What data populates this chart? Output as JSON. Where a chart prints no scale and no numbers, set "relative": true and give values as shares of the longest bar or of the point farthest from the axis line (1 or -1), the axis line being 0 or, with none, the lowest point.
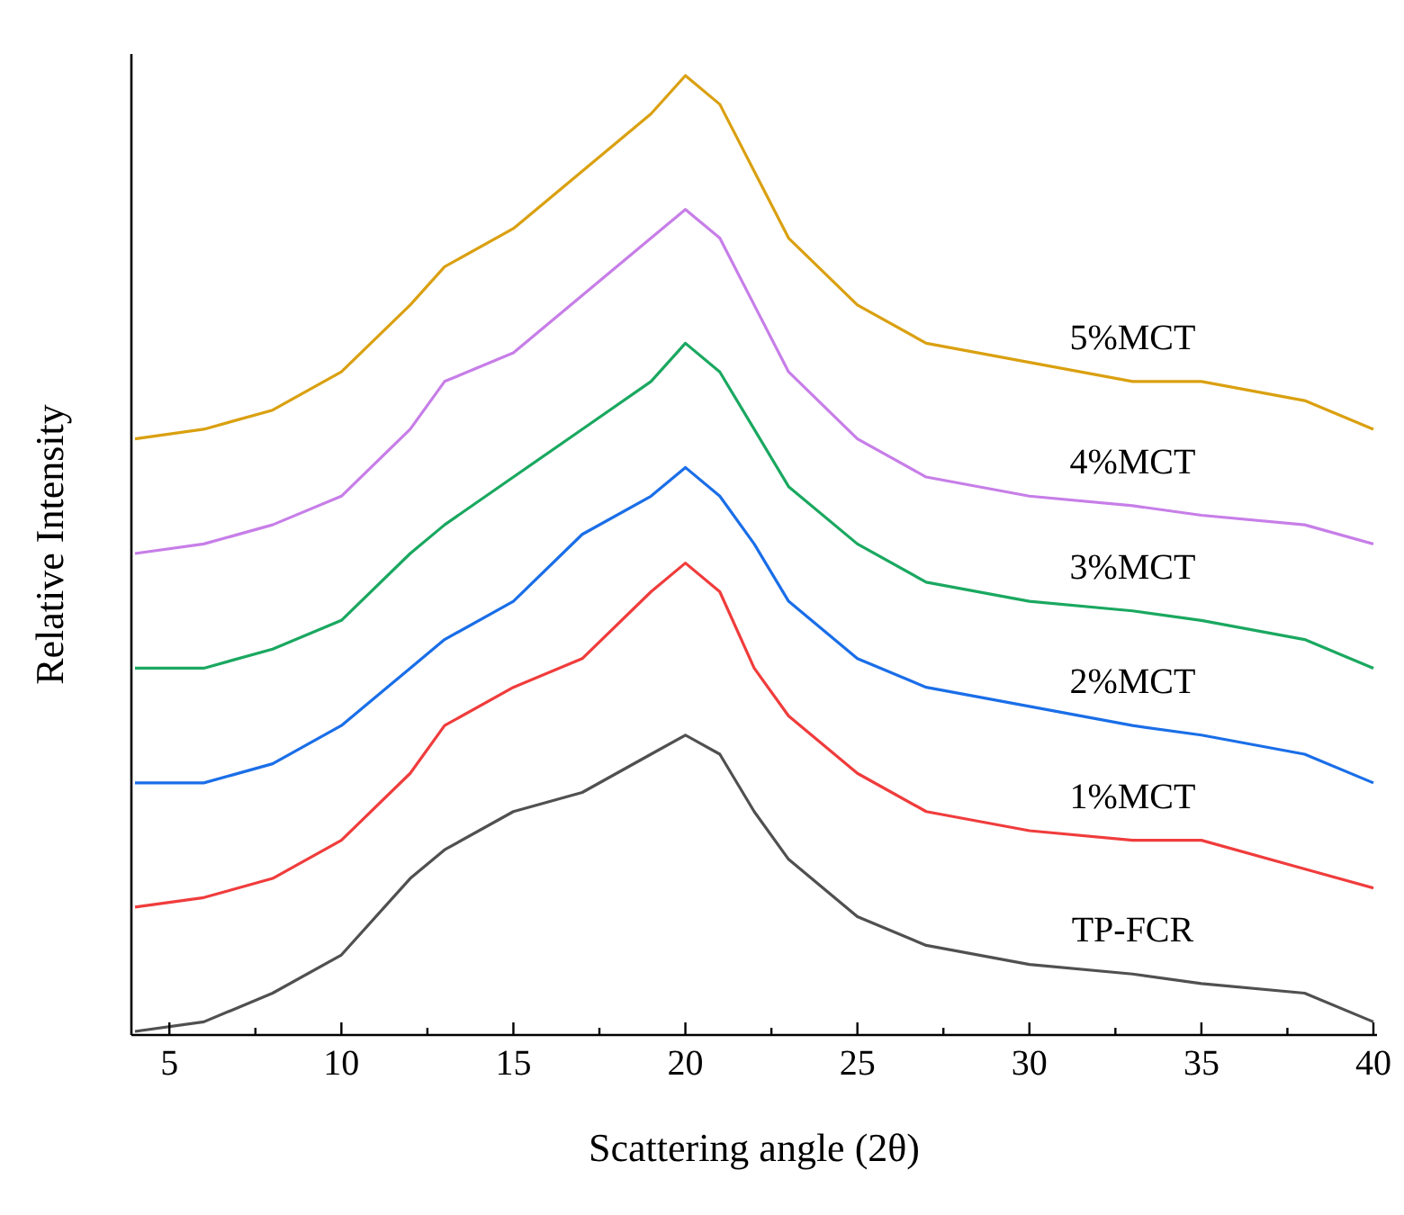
{
  "chart_data": {
    "type": "line",
    "relative": true,
    "xlabel": "Scattering angle (2θ)",
    "ylabel": "Relative Intensity",
    "grid": false,
    "marker": "none",
    "line_style": "solid",
    "x": [
      4,
      6,
      8,
      10,
      12,
      13,
      15,
      17,
      19,
      20,
      21,
      22,
      23,
      25,
      27,
      30,
      33,
      35,
      38,
      40
    ],
    "xlim": [
      4,
      40
    ],
    "xticks": [
      5,
      {
        "value": 7.5,
        "label": null
      },
      10,
      {
        "value": 12.5,
        "label": null
      },
      15,
      {
        "value": 17.5,
        "label": null
      },
      20,
      {
        "value": 22.5,
        "label": null
      },
      25,
      {
        "value": 27.5,
        "label": null
      },
      30,
      {
        "value": 32.5,
        "label": null
      },
      35,
      {
        "value": 37.5,
        "label": null
      },
      40
    ],
    "series": [
      {
        "name": "TP-FCR",
        "color": "#505050",
        "values": [
          0,
          0.01,
          0.04,
          0.08,
          0.16,
          0.19,
          0.23,
          0.25,
          0.29,
          0.31,
          0.29,
          0.23,
          0.18,
          0.12,
          0.09,
          0.07,
          0.06,
          0.05,
          0.04,
          0.01
        ]
      },
      {
        "name": "1%MCT",
        "color": "#f03c3c",
        "values": [
          0.13,
          0.14,
          0.16,
          0.2,
          0.27,
          0.32,
          0.36,
          0.39,
          0.46,
          0.49,
          0.46,
          0.38,
          0.33,
          0.27,
          0.23,
          0.21,
          0.2,
          0.2,
          0.17,
          0.15
        ]
      },
      {
        "name": "2%MCT",
        "color": "#1a6ee8",
        "values": [
          0.26,
          0.26,
          0.28,
          0.32,
          0.38,
          0.41,
          0.45,
          0.52,
          0.56,
          0.59,
          0.56,
          0.51,
          0.45,
          0.39,
          0.36,
          0.34,
          0.32,
          0.31,
          0.29,
          0.26
        ]
      },
      {
        "name": "3%MCT",
        "color": "#1aa860",
        "values": [
          0.38,
          0.38,
          0.4,
          0.43,
          0.5,
          0.53,
          0.58,
          0.63,
          0.68,
          0.72,
          0.69,
          0.63,
          0.57,
          0.51,
          0.47,
          0.45,
          0.44,
          0.43,
          0.41,
          0.38
        ]
      },
      {
        "name": "4%MCT",
        "color": "#c77ee8",
        "values": [
          0.5,
          0.51,
          0.53,
          0.56,
          0.63,
          0.68,
          0.71,
          0.77,
          0.83,
          0.86,
          0.83,
          0.76,
          0.69,
          0.62,
          0.58,
          0.56,
          0.55,
          0.54,
          0.53,
          0.51
        ]
      },
      {
        "name": "5%MCT",
        "color": "#daa010",
        "values": [
          0.62,
          0.63,
          0.65,
          0.69,
          0.76,
          0.8,
          0.84,
          0.9,
          0.96,
          1,
          0.97,
          0.9,
          0.83,
          0.76,
          0.72,
          0.7,
          0.68,
          0.68,
          0.66,
          0.63
        ]
      }
    ]
  }
}
